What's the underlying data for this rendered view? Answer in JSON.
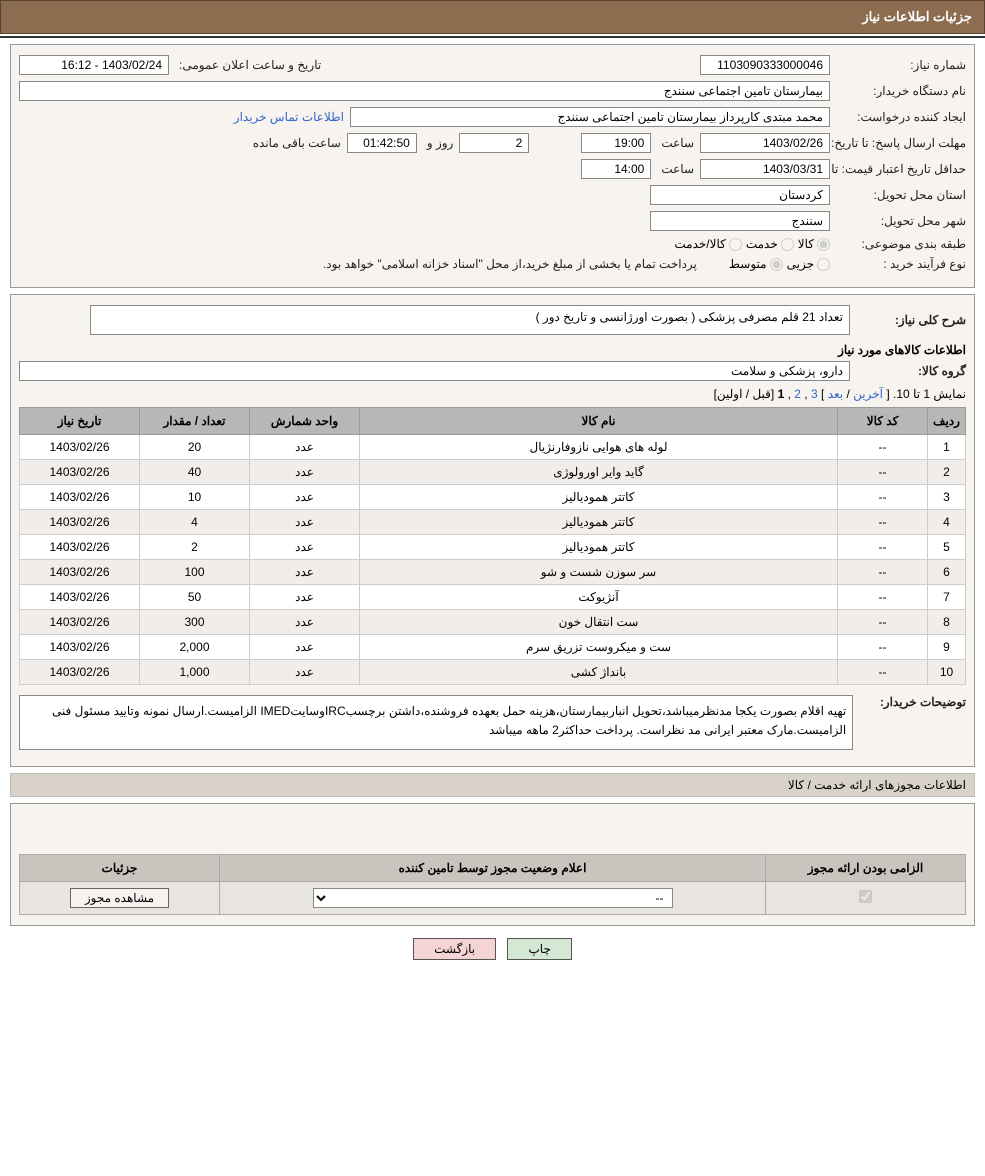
{
  "header": {
    "title": "جزئیات اطلاعات نیاز"
  },
  "info": {
    "need_no_label": "شماره نیاز:",
    "need_no": "1103090333000046",
    "announce_label": "تاریخ و ساعت اعلان عمومی:",
    "announce_value": "1403/02/24 - 16:12",
    "buyer_label": "نام دستگاه خریدار:",
    "buyer_value": "بیمارستان تامین اجتماعی سنندج",
    "requester_label": "ایجاد کننده درخواست:",
    "requester_value": "محمد مبتدی کارپرداز بیمارستان تامین اجتماعی سنندج",
    "contact_link": "اطلاعات تماس خریدار",
    "reply_deadline_label": "مهلت ارسال پاسخ: تا تاریخ:",
    "reply_date": "1403/02/26",
    "time_label": "ساعت",
    "reply_time": "19:00",
    "day_count": "2",
    "day_suffix": "روز و",
    "countdown": "01:42:50",
    "remaining_label": "ساعت باقی مانده",
    "validity_label": "حداقل تاریخ اعتبار قیمت: تا تاریخ:",
    "validity_date": "1403/03/31",
    "validity_time": "14:00",
    "province_label": "استان محل تحویل:",
    "province": "کردستان",
    "city_label": "شهر محل تحویل:",
    "city": "سنندج",
    "category_label": "طبقه بندی موضوعی:",
    "cat_options": [
      "کالا",
      "خدمت",
      "کالا/خدمت"
    ],
    "cat_selected": "کالا",
    "process_label": "نوع فرآیند خرید :",
    "proc_options": [
      "جزیی",
      "متوسط"
    ],
    "proc_selected": "متوسط",
    "proc_note": "پرداخت تمام یا بخشی از مبلغ خرید،از محل \"اسناد خزانه اسلامی\" خواهد بود."
  },
  "desc": {
    "label": "شرح کلی نیاز:",
    "text": "تعداد 21 قلم مصرفی پزشکی ( بصورت اورژانسی و تاریخ دور )",
    "items_title": "اطلاعات کالاهای مورد نیاز",
    "group_label": "گروه کالا:",
    "group_value": "دارو، پزشکی و سلامت"
  },
  "pagination": {
    "summary": "نمایش 1 تا 10.",
    "last": "آخرین",
    "next": "بعد",
    "p3": "3",
    "p2": "2",
    "p1": "1",
    "prevfirst": "[قبل / اولین]",
    "open_b": "[",
    "close_b": "]",
    "slash": " / "
  },
  "table": {
    "cols": [
      "ردیف",
      "کد کالا",
      "نام کالا",
      "واحد شمارش",
      "تعداد / مقدار",
      "تاریخ نیاز"
    ],
    "rows": [
      [
        "1",
        "--",
        "لوله های هوایی نازوفارنژیال",
        "عدد",
        "20",
        "1403/02/26"
      ],
      [
        "2",
        "--",
        "گاید وایر اورولوژی",
        "عدد",
        "40",
        "1403/02/26"
      ],
      [
        "3",
        "--",
        "کاتتر همودیالیز",
        "عدد",
        "10",
        "1403/02/26"
      ],
      [
        "4",
        "--",
        "کاتتر همودیالیز",
        "عدد",
        "4",
        "1403/02/26"
      ],
      [
        "5",
        "--",
        "کاتتر همودیالیز",
        "عدد",
        "2",
        "1403/02/26"
      ],
      [
        "6",
        "--",
        "سر سوزن شست و شو",
        "عدد",
        "100",
        "1403/02/26"
      ],
      [
        "7",
        "--",
        "آنژیوکت",
        "عدد",
        "50",
        "1403/02/26"
      ],
      [
        "8",
        "--",
        "ست انتقال خون",
        "عدد",
        "300",
        "1403/02/26"
      ],
      [
        "9",
        "--",
        "ست و میکروست تزریق سرم",
        "عدد",
        "2,000",
        "1403/02/26"
      ],
      [
        "10",
        "--",
        "بانداژ کشی",
        "عدد",
        "1,000",
        "1403/02/26"
      ]
    ],
    "col_widths": [
      "38px",
      "90px",
      "auto",
      "110px",
      "110px",
      "120px"
    ]
  },
  "buyer_note": {
    "label": "توضیحات خریدار:",
    "text": "تهیه اقلام بصورت یکجا مدنظرمیباشد،تحویل انباربیمارستان،هزینه حمل بعهده فروشنده،داشتن برچسبIRCوسایتIMED الزامیست.ارسال نمونه وتایید مسئول فنی الزامیست.مارک معتبر ایرانی مد نظراست. پرداخت حداکثر2 ماهه میباشد"
  },
  "license": {
    "section_title": "اطلاعات مجوزهای ارائه خدمت / کالا",
    "cols": [
      "الزامی بودن ارائه مجوز",
      "اعلام وضعیت مجوز توسط تامین کننده",
      "جزئیات"
    ],
    "select_value": "--",
    "view_btn": "مشاهده مجوز"
  },
  "buttons": {
    "print": "چاپ",
    "back": "بازگشت"
  },
  "colors": {
    "header_bg": "#8c6d4f",
    "panel_bg": "#f7f3ee",
    "th_bg": "#b7b7b7",
    "row_alt": "#f1edea",
    "link": "#3366cc"
  }
}
